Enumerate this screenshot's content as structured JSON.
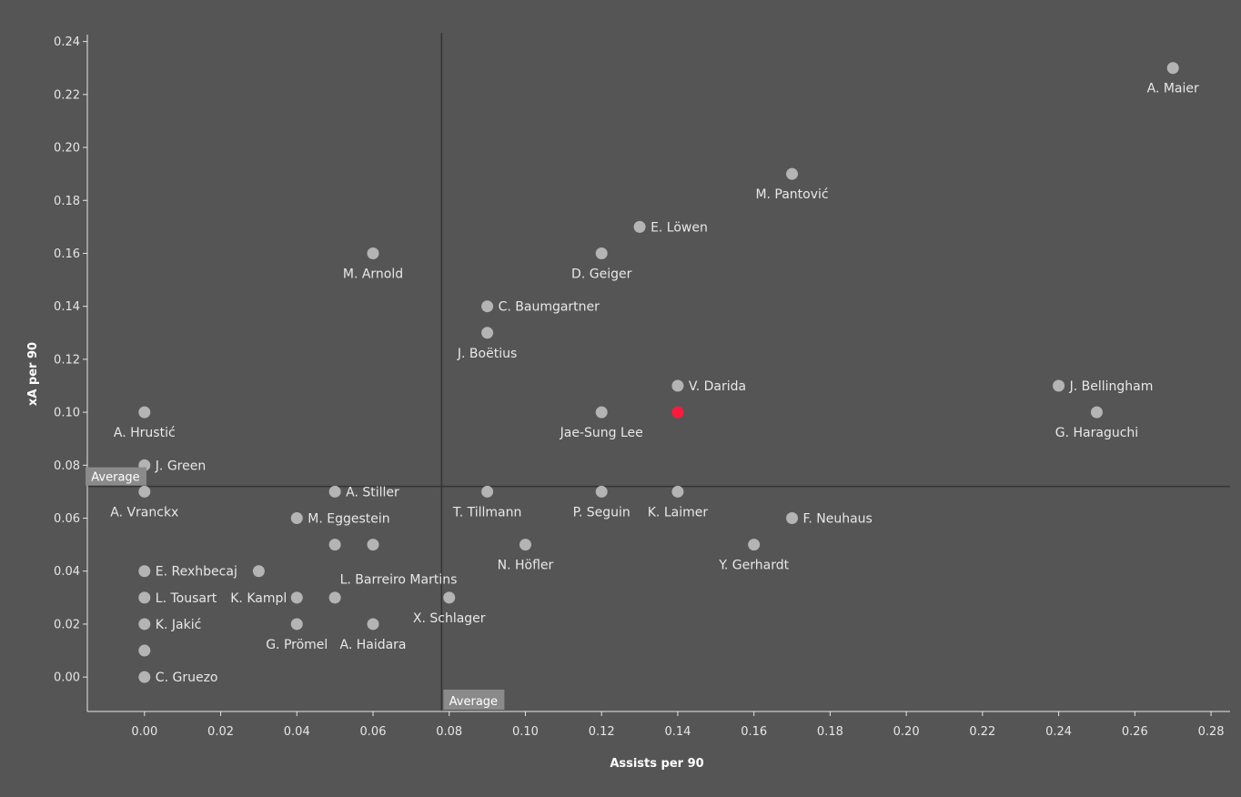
{
  "chart_data": {
    "type": "scatter",
    "title": "",
    "xlabel": "Assists per 90",
    "ylabel": "xA per 90",
    "xlim": [
      -0.015,
      0.285
    ],
    "ylim": [
      -0.013,
      0.244
    ],
    "x_ticks": [
      "0.00",
      "0.02",
      "0.04",
      "0.06",
      "0.08",
      "0.10",
      "0.12",
      "0.14",
      "0.16",
      "0.18",
      "0.20",
      "0.22",
      "0.24",
      "0.26",
      "0.28"
    ],
    "y_ticks": [
      "0.00",
      "0.02",
      "0.04",
      "0.06",
      "0.08",
      "0.10",
      "0.12",
      "0.14",
      "0.16",
      "0.18",
      "0.20",
      "0.22",
      "0.24"
    ],
    "grid": false,
    "reference_lines": {
      "x_average": 0.078,
      "y_average": 0.072,
      "x_label": "Average",
      "y_label": "Average"
    },
    "colors": {
      "background": "#555555",
      "point": "#b4b4b4",
      "highlight": "#ff1a3c",
      "reference_line": "#333333",
      "axis": "#e6e6e6"
    },
    "points": [
      {
        "name": "A. Maier",
        "x": 0.27,
        "y": 0.23,
        "pos": "below"
      },
      {
        "name": "M. Pantović",
        "x": 0.17,
        "y": 0.19,
        "pos": "below"
      },
      {
        "name": "E. Löwen",
        "x": 0.13,
        "y": 0.17,
        "pos": "right"
      },
      {
        "name": "M. Arnold",
        "x": 0.06,
        "y": 0.16,
        "pos": "below"
      },
      {
        "name": "D. Geiger",
        "x": 0.12,
        "y": 0.16,
        "pos": "below"
      },
      {
        "name": "C. Baumgartner",
        "x": 0.09,
        "y": 0.14,
        "pos": "right"
      },
      {
        "name": "J. Boëtius",
        "x": 0.09,
        "y": 0.13,
        "pos": "below"
      },
      {
        "name": "V. Darida",
        "x": 0.14,
        "y": 0.11,
        "pos": "right"
      },
      {
        "name": "J. Bellingham",
        "x": 0.24,
        "y": 0.11,
        "pos": "right"
      },
      {
        "name": "A. Hrustić",
        "x": 0.0,
        "y": 0.1,
        "pos": "below"
      },
      {
        "name": "Jae-Sung Lee",
        "x": 0.12,
        "y": 0.1,
        "pos": "below"
      },
      {
        "name": "",
        "x": 0.14,
        "y": 0.1,
        "highlight": true
      },
      {
        "name": "G. Haraguchi",
        "x": 0.25,
        "y": 0.1,
        "pos": "below"
      },
      {
        "name": "J. Green",
        "x": 0.0,
        "y": 0.08,
        "pos": "right"
      },
      {
        "name": "A. Vranckx",
        "x": 0.0,
        "y": 0.07,
        "pos": "below"
      },
      {
        "name": "A. Stiller",
        "x": 0.05,
        "y": 0.07,
        "pos": "right"
      },
      {
        "name": "T. Tillmann",
        "x": 0.09,
        "y": 0.07,
        "pos": "below"
      },
      {
        "name": "P. Seguin",
        "x": 0.12,
        "y": 0.07,
        "pos": "below"
      },
      {
        "name": "K. Laimer",
        "x": 0.14,
        "y": 0.07,
        "pos": "below"
      },
      {
        "name": "M. Eggestein",
        "x": 0.04,
        "y": 0.06,
        "pos": "right"
      },
      {
        "name": "F. Neuhaus",
        "x": 0.17,
        "y": 0.06,
        "pos": "right"
      },
      {
        "name": "",
        "x": 0.05,
        "y": 0.05
      },
      {
        "name": "L. Barreiro Martins",
        "x": 0.06,
        "y": 0.05,
        "pos": "below-offset"
      },
      {
        "name": "N. Höfler",
        "x": 0.1,
        "y": 0.05,
        "pos": "below"
      },
      {
        "name": "Y. Gerhardt",
        "x": 0.16,
        "y": 0.05,
        "pos": "below"
      },
      {
        "name": "E. Rexhbecaj",
        "x": 0.0,
        "y": 0.04,
        "pos": "right"
      },
      {
        "name": "",
        "x": 0.03,
        "y": 0.04
      },
      {
        "name": "L. Tousart",
        "x": 0.0,
        "y": 0.03,
        "pos": "right"
      },
      {
        "name": "K. Kampl",
        "x": 0.04,
        "y": 0.03,
        "pos": "left"
      },
      {
        "name": "",
        "x": 0.05,
        "y": 0.03
      },
      {
        "name": "X. Schlager",
        "x": 0.08,
        "y": 0.03,
        "pos": "below"
      },
      {
        "name": "K. Jakić",
        "x": 0.0,
        "y": 0.02,
        "pos": "right"
      },
      {
        "name": "G. Prömel",
        "x": 0.04,
        "y": 0.02,
        "pos": "below"
      },
      {
        "name": "A. Haidara",
        "x": 0.06,
        "y": 0.02,
        "pos": "below"
      },
      {
        "name": "",
        "x": 0.0,
        "y": 0.01
      },
      {
        "name": "C. Gruezo",
        "x": 0.0,
        "y": 0.0,
        "pos": "right"
      }
    ]
  }
}
